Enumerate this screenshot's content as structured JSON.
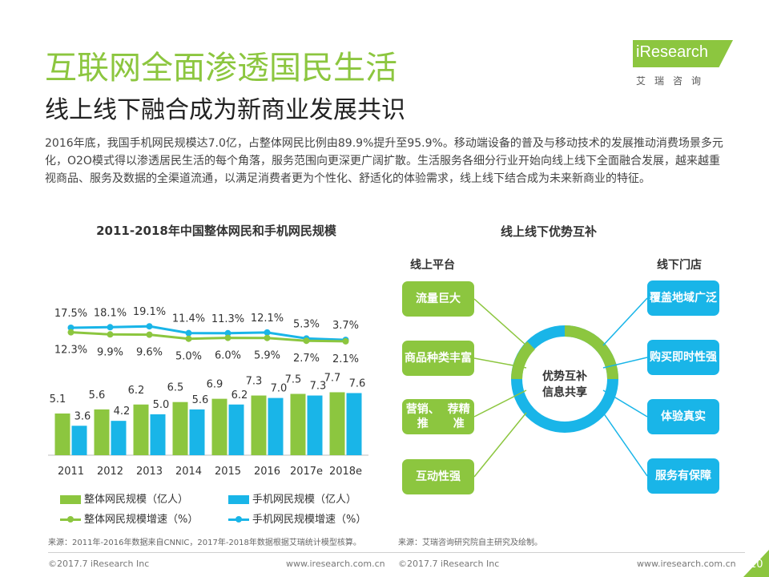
{
  "header": {
    "title": "互联网全面渗透国民生活",
    "subtitle": "线上线下融合成为新商业发展共识",
    "logo_text": "iResearch",
    "logo_sub": "艾瑞咨询"
  },
  "intro": "2016年底，我国手机网民规模达7.0亿，占整体网民比例由89.9%提升至95.9%。移动端设备的普及与移动技术的发展推动消费场景多元化，O2O模式得以渗透居民生活的每个角落，服务范围向更深更广阔扩散。生活服务各细分行业开始向线上线下全面融合发展，越来越重视商品、服务及数据的全渠道流通，以满足消费者更为个性化、舒适化的体验需求，线上线下结合成为未来新商业的特征。",
  "colors": {
    "green": "#8cc63f",
    "blue": "#19b5e8"
  },
  "chart_data": {
    "type": "bar",
    "title": "2011-2018年中国整体网民和手机网民规模",
    "categories": [
      "2011",
      "2012",
      "2013",
      "2014",
      "2015",
      "2016",
      "2017e",
      "2018e"
    ],
    "series": [
      {
        "name": "整体网民规模（亿人）",
        "type": "bar",
        "color": "#8cc63f",
        "values": [
          5.1,
          5.6,
          6.2,
          6.5,
          6.9,
          7.3,
          7.5,
          7.7
        ]
      },
      {
        "name": "手机网民规模（亿人）",
        "type": "bar",
        "color": "#19b5e8",
        "values": [
          3.6,
          4.2,
          5.0,
          5.6,
          6.2,
          7.0,
          7.3,
          7.6
        ]
      },
      {
        "name": "整体网民规模增速（%）",
        "type": "line",
        "color": "#8cc63f",
        "values": [
          12.3,
          9.9,
          9.6,
          5.0,
          6.0,
          5.9,
          2.7,
          2.1
        ],
        "labels": [
          "12.3%",
          "9.9%",
          "9.6%",
          "5.0%",
          "6.0%",
          "5.9%",
          "2.7%",
          "2.1%"
        ]
      },
      {
        "name": "手机网民规模增速（%）",
        "type": "line",
        "color": "#19b5e8",
        "values": [
          17.5,
          18.1,
          19.1,
          11.4,
          11.3,
          12.1,
          5.3,
          3.7
        ],
        "labels": [
          "17.5%",
          "18.1%",
          "19.1%",
          "11.4%",
          "11.3%",
          "12.1%",
          "5.3%",
          "3.7%"
        ]
      }
    ],
    "legend_position": "bottom",
    "grid": false
  },
  "diagram": {
    "title": "线上线下优势互补",
    "left_heading": "线上平台",
    "right_heading": "线下门店",
    "center": [
      "优势互补",
      "信息共享"
    ],
    "left_items": [
      [
        "流量巨大"
      ],
      [
        "商品种类",
        "丰富"
      ],
      [
        "营销、推",
        "荐精准"
      ],
      [
        "互动性强"
      ]
    ],
    "right_items": [
      [
        "覆盖地域",
        "广泛"
      ],
      [
        "购买即时",
        "性强"
      ],
      [
        "体验真实"
      ],
      [
        "服务有保",
        "障"
      ]
    ]
  },
  "footer": {
    "source_left": "来源：2011年-2016年数据来自CNNIC，2017年-2018年数据根据艾瑞统计模型核算。",
    "source_right": "来源：艾瑞咨询研究院自主研究及绘制。",
    "copyright_left": "©2017.7 iResearch Inc",
    "url_left": "www.iresearch.com.cn",
    "copyright_right": "©2017.7 iResearch Inc",
    "url_right": "www.iresearch.com.cn",
    "page_number": "10"
  }
}
